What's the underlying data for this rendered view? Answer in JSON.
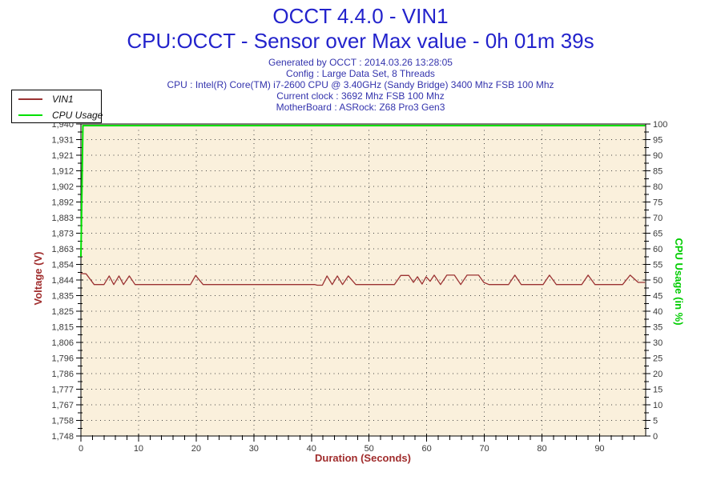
{
  "header": {
    "title": "OCCT 4.4.0 - VIN1",
    "subtitle": "CPU:OCCT - Sensor over Max value - 0h 01m 39s",
    "info_lines": [
      "Generated by OCCT : 2014.03.26 13:28:05",
      "Config : Large Data Set, 8 Threads",
      "CPU : Intel(R) Core(TM) i7-2600 CPU @ 3.40GHz (Sandy Bridge) 3400 Mhz FSB 100 Mhz",
      "Current clock : 3692 Mhz FSB 100 Mhz",
      "MotherBoard : ASRock: Z68 Pro3 Gen3"
    ]
  },
  "legend": {
    "items": [
      {
        "label": "VIN1",
        "color": "#9b3232"
      },
      {
        "label": "CPU Usage",
        "color": "#00e000"
      }
    ]
  },
  "colors": {
    "title_blue": "#2323cc",
    "info_blue": "#3434ad",
    "plot_background": "#faf0dc",
    "vin1_line": "#9b3232",
    "cpu_line": "#00e000",
    "voltage_axis_text": "#a02c2c",
    "cpu_axis_text": "#00cc00",
    "tick_text": "#3a3a3a",
    "grid_dots": "#444444"
  },
  "chart_data": {
    "type": "line",
    "title": "OCCT 4.4.0 - VIN1",
    "subtitle": "CPU:OCCT - Sensor over Max value - 0h 01m 39s",
    "xlabel": "Duration (Seconds)",
    "ylabel_left": "Voltage (V)",
    "ylabel_right": "CPU Usage (in %)",
    "xlim": [
      0,
      98
    ],
    "ylim_left": [
      1.748,
      1.94
    ],
    "ylim_right": [
      0,
      100
    ],
    "x_major_ticks": [
      0,
      10,
      20,
      30,
      40,
      50,
      60,
      70,
      80,
      90
    ],
    "x_minor_tick_step": 2,
    "y_left_tick_labels": [
      "1,940",
      "1,931",
      "1,921",
      "1,912",
      "1,902",
      "1,892",
      "1,883",
      "1,873",
      "1,863",
      "1,854",
      "1,844",
      "1,835",
      "1,825",
      "1,815",
      "1,806",
      "1,796",
      "1,786",
      "1,777",
      "1,767",
      "1,758",
      "1,748"
    ],
    "y_right_tick_labels": [
      "100",
      "95",
      "90",
      "85",
      "80",
      "75",
      "70",
      "65",
      "60",
      "55",
      "50",
      "45",
      "40",
      "35",
      "30",
      "25",
      "20",
      "15",
      "10",
      "5",
      "0"
    ],
    "grid": "dotted",
    "legend_position": "top-left",
    "series": [
      {
        "name": "VIN1",
        "axis": "left",
        "color": "#9b3232",
        "points": [
          [
            0,
            1.848
          ],
          [
            0.9,
            1.8478
          ],
          [
            2.3,
            1.8412
          ],
          [
            4.0,
            1.8412
          ],
          [
            4.9,
            1.8465
          ],
          [
            5.7,
            1.8412
          ],
          [
            6.6,
            1.8465
          ],
          [
            7.4,
            1.8412
          ],
          [
            8.4,
            1.8465
          ],
          [
            9.4,
            1.8412
          ],
          [
            19.0,
            1.8412
          ],
          [
            19.9,
            1.8468
          ],
          [
            21.2,
            1.8412
          ],
          [
            40.6,
            1.8412
          ],
          [
            41.0,
            1.8408
          ],
          [
            41.9,
            1.8408
          ],
          [
            42.7,
            1.8465
          ],
          [
            43.6,
            1.8412
          ],
          [
            44.5,
            1.8465
          ],
          [
            45.4,
            1.8412
          ],
          [
            46.4,
            1.8465
          ],
          [
            47.7,
            1.8412
          ],
          [
            54.4,
            1.8412
          ],
          [
            55.5,
            1.8468
          ],
          [
            56.9,
            1.8468
          ],
          [
            57.7,
            1.8425
          ],
          [
            58.4,
            1.846
          ],
          [
            59.2,
            1.8415
          ],
          [
            59.9,
            1.846
          ],
          [
            60.6,
            1.8432
          ],
          [
            61.3,
            1.847
          ],
          [
            62.4,
            1.8412
          ],
          [
            63.5,
            1.847
          ],
          [
            64.8,
            1.847
          ],
          [
            65.9,
            1.8412
          ],
          [
            67.0,
            1.847
          ],
          [
            69.0,
            1.847
          ],
          [
            69.9,
            1.8425
          ],
          [
            70.8,
            1.8412
          ],
          [
            74.2,
            1.8412
          ],
          [
            75.3,
            1.847
          ],
          [
            76.4,
            1.8412
          ],
          [
            80.2,
            1.8412
          ],
          [
            81.3,
            1.847
          ],
          [
            82.5,
            1.8412
          ],
          [
            86.9,
            1.8412
          ],
          [
            88.0,
            1.847
          ],
          [
            89.2,
            1.8412
          ],
          [
            94.0,
            1.8412
          ],
          [
            95.3,
            1.847
          ],
          [
            96.7,
            1.8425
          ],
          [
            97.8,
            1.8425
          ]
        ]
      },
      {
        "name": "CPU Usage",
        "axis": "right",
        "color": "#00e000",
        "points": [
          [
            0,
            58
          ],
          [
            0.35,
            100
          ],
          [
            97.8,
            100
          ]
        ]
      }
    ]
  }
}
